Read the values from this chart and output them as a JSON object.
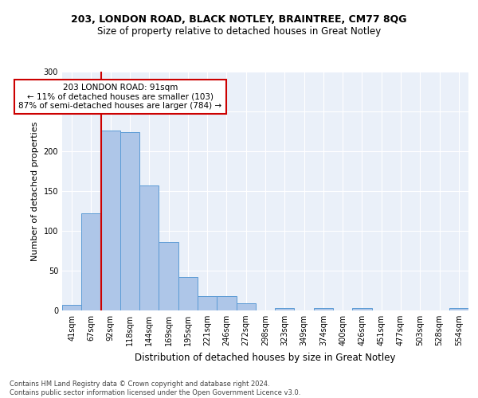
{
  "title1": "203, LONDON ROAD, BLACK NOTLEY, BRAINTREE, CM77 8QG",
  "title2": "Size of property relative to detached houses in Great Notley",
  "xlabel": "Distribution of detached houses by size in Great Notley",
  "ylabel": "Number of detached properties",
  "bins": [
    "41sqm",
    "67sqm",
    "92sqm",
    "118sqm",
    "144sqm",
    "169sqm",
    "195sqm",
    "221sqm",
    "246sqm",
    "272sqm",
    "298sqm",
    "323sqm",
    "349sqm",
    "374sqm",
    "400sqm",
    "426sqm",
    "451sqm",
    "477sqm",
    "503sqm",
    "528sqm",
    "554sqm"
  ],
  "values": [
    7,
    122,
    226,
    224,
    157,
    86,
    42,
    18,
    18,
    9,
    0,
    3,
    0,
    3,
    0,
    3,
    0,
    0,
    0,
    0,
    3
  ],
  "bar_color": "#aec6e8",
  "bar_edge_color": "#5b9bd5",
  "ref_line_color": "#cc0000",
  "annotation_text": "203 LONDON ROAD: 91sqm\n← 11% of detached houses are smaller (103)\n87% of semi-detached houses are larger (784) →",
  "annotation_box_color": "#ffffff",
  "annotation_box_edge": "#cc0000",
  "ylim": [
    0,
    300
  ],
  "yticks": [
    0,
    50,
    100,
    150,
    200,
    250,
    300
  ],
  "footer": "Contains HM Land Registry data © Crown copyright and database right 2024.\nContains public sector information licensed under the Open Government Licence v3.0.",
  "bg_color": "#eaf0f9",
  "title_fontsize": 9,
  "subtitle_fontsize": 8.5,
  "ylabel_fontsize": 8,
  "xlabel_fontsize": 8.5,
  "tick_fontsize": 7,
  "annotation_fontsize": 7.5,
  "footer_fontsize": 6
}
